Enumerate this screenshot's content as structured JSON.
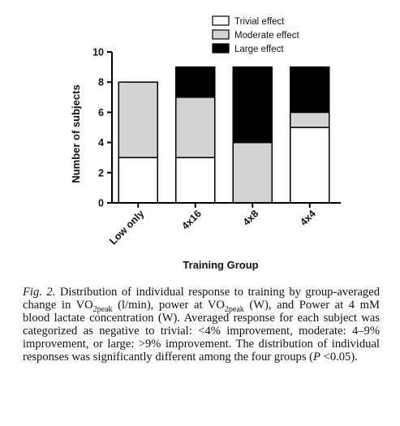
{
  "chart_data": {
    "type": "bar",
    "stacked": true,
    "categories": [
      "Low only",
      "4x16",
      "4x8",
      "4x4"
    ],
    "series": [
      {
        "name": "Trivial effect",
        "values": [
          3,
          3,
          0,
          5
        ],
        "color": "#ffffff"
      },
      {
        "name": "Moderate effect",
        "values": [
          5,
          4,
          4,
          1
        ],
        "color": "#d3d3d3"
      },
      {
        "name": "Large effect",
        "values": [
          0,
          2,
          5,
          3
        ],
        "color": "#000000"
      }
    ],
    "xlabel": "Training Group",
    "ylabel": "Number of subjects",
    "ylim": [
      0,
      10
    ],
    "yticks": [
      "0",
      "2",
      "4",
      "6",
      "8",
      "10"
    ],
    "grid": false,
    "legend_position": "top-right"
  },
  "caption": {
    "fig_label": "Fig. 2.",
    "part1": " Distribution of individual response to training by group-averaged change in VO",
    "sub1": "2peak",
    "part2": " (l/min), power at VO",
    "sub2": "2peak",
    "part3": " (W), and Power at 4 mM blood lactate concentration (W). Averaged response for each subject was categorized as negative to trivial: <4% improvement, moderate: 4–9% improvement, or large: >9% improvement. The distribution of individual responses was significantly different among the four groups (",
    "p_symbol": "P",
    "part4": " <0.05)."
  }
}
